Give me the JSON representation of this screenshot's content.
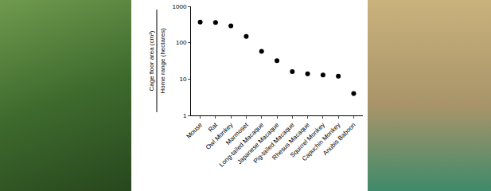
{
  "chart_data": {
    "type": "scatter",
    "ylabel": [
      "Cage floor area (cm²)",
      "Home range (hectares)"
    ],
    "categories": [
      "Mouse",
      "Rat",
      "Owl Monkey",
      "Marmoset",
      "Long-tailed Macaque",
      "Japanese Macaque",
      "Pig-tailed Macaque",
      "Rhesus Macaque",
      "Squirrel Monkey",
      "Capuchin Monkey",
      "Anubis Baboon"
    ],
    "values": [
      370,
      360,
      290,
      150,
      58,
      32,
      16,
      14,
      13,
      12,
      4
    ],
    "color": "#000000",
    "marker": "circle",
    "log": "y",
    "ylim": [
      1,
      1000
    ],
    "yticks": [
      1,
      10,
      100,
      1000
    ],
    "grid": false
  }
}
